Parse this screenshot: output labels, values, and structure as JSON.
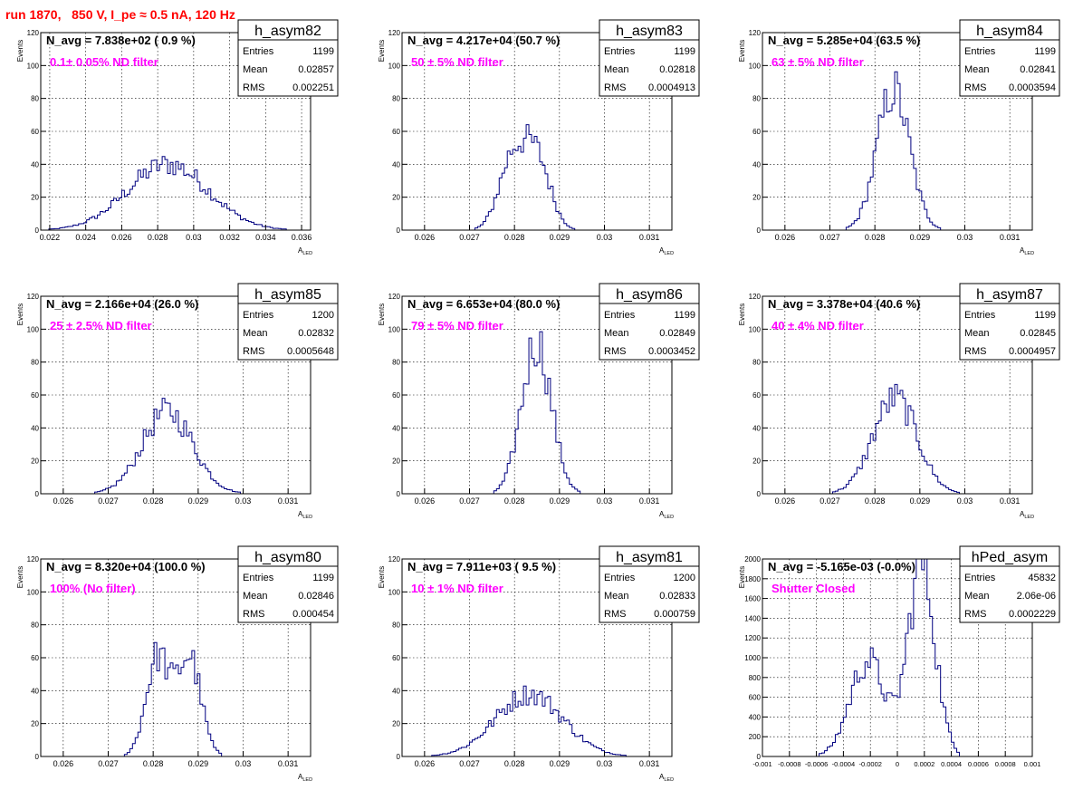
{
  "page_title": "run 1870,   850 V, I_pe ≈ 0.5 nA, 120 Hz",
  "colors": {
    "line": "#000080",
    "annotation": "#ff00ff",
    "title": "#ff0000",
    "grid": "#000000",
    "frame": "#000000"
  },
  "chart_data": [
    {
      "type": "histogram",
      "name": "h_asym82",
      "navg": "N_avg = 7.838e+02 ( 0.9 %)",
      "note": "0.1± 0.05% ND filter",
      "stats": [
        [
          "Entries",
          "1199"
        ],
        [
          "Mean",
          "0.02857"
        ],
        [
          "RMS",
          "0.002251"
        ]
      ],
      "xlabel": "A",
      "xlabel_sub": "LED",
      "ylabel": "Events",
      "xlim": [
        0.0215,
        0.0365
      ],
      "ylim": [
        0,
        120
      ],
      "xticks": [
        0.022,
        0.024,
        0.026,
        0.028,
        0.03,
        0.032,
        0.034,
        0.036
      ],
      "xtick_labels": [
        "0.022",
        "0.024",
        "0.026",
        "0.028",
        "0.03",
        "0.032",
        "0.034",
        "0.036"
      ],
      "yticks": [
        0,
        20,
        40,
        60,
        80,
        100,
        120
      ],
      "ytick_labels": [
        "0",
        "20",
        "40",
        "60",
        "80",
        "100",
        "120"
      ],
      "nbins": 100,
      "gauss": [
        [
          1,
          0.02857,
          0.00225
        ]
      ],
      "peak": 40
    },
    {
      "type": "histogram",
      "name": "h_asym83",
      "navg": "N_avg = 4.217e+04 (50.7 %)",
      "note": "50 ± 5% ND filter",
      "stats": [
        [
          "Entries",
          "1199"
        ],
        [
          "Mean",
          "0.02818"
        ],
        [
          "RMS",
          "0.0004913"
        ]
      ],
      "xlabel": "A",
      "xlabel_sub": "LED",
      "ylabel": "Events",
      "xlim": [
        0.0255,
        0.0315
      ],
      "ylim": [
        0,
        120
      ],
      "xticks": [
        0.026,
        0.027,
        0.028,
        0.029,
        0.03,
        0.031
      ],
      "xtick_labels": [
        "0.026",
        "0.027",
        "0.028",
        "0.029",
        "0.03",
        "0.031"
      ],
      "yticks": [
        0,
        20,
        40,
        60,
        80,
        100,
        120
      ],
      "ytick_labels": [
        "0",
        "20",
        "40",
        "60",
        "80",
        "100",
        "120"
      ],
      "nbins": 100,
      "gauss": [
        [
          1,
          0.02795,
          0.0003
        ],
        [
          1,
          0.0285,
          0.0003
        ]
      ],
      "peak": 55
    },
    {
      "type": "histogram",
      "name": "h_asym84",
      "navg": "N_avg = 5.285e+04 (63.5 %)",
      "note": "63 ± 5% ND filter",
      "stats": [
        [
          "Entries",
          "1199"
        ],
        [
          "Mean",
          "0.02841"
        ],
        [
          "RMS",
          "0.0003594"
        ]
      ],
      "xlabel": "A",
      "xlabel_sub": "LED",
      "ylabel": "Events",
      "xlim": [
        0.0255,
        0.0315
      ],
      "ylim": [
        0,
        120
      ],
      "xticks": [
        0.026,
        0.027,
        0.028,
        0.029,
        0.03,
        0.031
      ],
      "xtick_labels": [
        "0.026",
        "0.027",
        "0.028",
        "0.029",
        "0.03",
        "0.031"
      ],
      "yticks": [
        0,
        20,
        40,
        60,
        80,
        100,
        120
      ],
      "ytick_labels": [
        "0",
        "20",
        "40",
        "60",
        "80",
        "100",
        "120"
      ],
      "nbins": 100,
      "gauss": [
        [
          1,
          0.02841,
          0.00036
        ]
      ],
      "peak": 85
    },
    {
      "type": "histogram",
      "name": "h_asym85",
      "navg": "N_avg = 2.166e+04 (26.0 %)",
      "note": "25 ± 2.5% ND filter",
      "stats": [
        [
          "Entries",
          "1200"
        ],
        [
          "Mean",
          "0.02832"
        ],
        [
          "RMS",
          "0.0005648"
        ]
      ],
      "xlabel": "A",
      "xlabel_sub": "LED",
      "ylabel": "Events",
      "xlim": [
        0.0255,
        0.0315
      ],
      "ylim": [
        0,
        120
      ],
      "xticks": [
        0.026,
        0.027,
        0.028,
        0.029,
        0.03,
        0.031
      ],
      "xtick_labels": [
        "0.026",
        "0.027",
        "0.028",
        "0.029",
        "0.03",
        "0.031"
      ],
      "yticks": [
        0,
        20,
        40,
        60,
        80,
        100,
        120
      ],
      "ytick_labels": [
        "0",
        "20",
        "40",
        "60",
        "80",
        "100",
        "120"
      ],
      "nbins": 100,
      "gauss": [
        [
          1,
          0.02832,
          0.00056
        ]
      ],
      "peak": 50
    },
    {
      "type": "histogram",
      "name": "h_asym86",
      "navg": "N_avg = 6.653e+04 (80.0 %)",
      "note": "79 ± 5% ND filter",
      "stats": [
        [
          "Entries",
          "1199"
        ],
        [
          "Mean",
          "0.02849"
        ],
        [
          "RMS",
          "0.0003452"
        ]
      ],
      "xlabel": "A",
      "xlabel_sub": "LED",
      "ylabel": "Events",
      "xlim": [
        0.0255,
        0.0315
      ],
      "ylim": [
        0,
        120
      ],
      "xticks": [
        0.026,
        0.027,
        0.028,
        0.029,
        0.03,
        0.031
      ],
      "xtick_labels": [
        "0.026",
        "0.027",
        "0.028",
        "0.029",
        "0.03",
        "0.031"
      ],
      "yticks": [
        0,
        20,
        40,
        60,
        80,
        100,
        120
      ],
      "ytick_labels": [
        "0",
        "20",
        "40",
        "60",
        "80",
        "100",
        "120"
      ],
      "nbins": 100,
      "gauss": [
        [
          1,
          0.02849,
          0.00033
        ]
      ],
      "peak": 92
    },
    {
      "type": "histogram",
      "name": "h_asym87",
      "navg": "N_avg = 3.378e+04 (40.6 %)",
      "note": "40 ± 4% ND filter",
      "stats": [
        [
          "Entries",
          "1199"
        ],
        [
          "Mean",
          "0.02845"
        ],
        [
          "RMS",
          "0.0004957"
        ]
      ],
      "xlabel": "A",
      "xlabel_sub": "LED",
      "ylabel": "Events",
      "xlim": [
        0.0255,
        0.0315
      ],
      "ylim": [
        0,
        120
      ],
      "xticks": [
        0.026,
        0.027,
        0.028,
        0.029,
        0.03,
        0.031
      ],
      "xtick_labels": [
        "0.026",
        "0.027",
        "0.028",
        "0.029",
        "0.03",
        "0.031"
      ],
      "yticks": [
        0,
        20,
        40,
        60,
        80,
        100,
        120
      ],
      "ytick_labels": [
        "0",
        "20",
        "40",
        "60",
        "80",
        "100",
        "120"
      ],
      "nbins": 100,
      "gauss": [
        [
          1,
          0.02845,
          0.00049
        ]
      ],
      "peak": 58
    },
    {
      "type": "histogram",
      "name": "h_asym80",
      "navg": "N_avg = 8.320e+04 (100.0 %)",
      "note": "100% (No filter)",
      "stats": [
        [
          "Entries",
          "1199"
        ],
        [
          "Mean",
          "0.02846"
        ],
        [
          "RMS",
          "0.000454"
        ]
      ],
      "xlabel": "A",
      "xlabel_sub": "LED",
      "ylabel": "Events",
      "xlim": [
        0.0255,
        0.0315
      ],
      "ylim": [
        0,
        120
      ],
      "xticks": [
        0.026,
        0.027,
        0.028,
        0.029,
        0.03,
        0.031
      ],
      "xtick_labels": [
        "0.026",
        "0.027",
        "0.028",
        "0.029",
        "0.03",
        "0.031"
      ],
      "yticks": [
        0,
        20,
        40,
        60,
        80,
        100,
        120
      ],
      "ytick_labels": [
        "0",
        "20",
        "40",
        "60",
        "80",
        "100",
        "120"
      ],
      "nbins": 100,
      "gauss": [
        [
          1,
          0.0281,
          0.00026
        ],
        [
          1,
          0.0288,
          0.00026
        ]
      ],
      "peak": 62
    },
    {
      "type": "histogram",
      "name": "h_asym81",
      "navg": "N_avg = 7.911e+03 ( 9.5 %)",
      "note": "10 ± 1% ND filter",
      "stats": [
        [
          "Entries",
          "1200"
        ],
        [
          "Mean",
          "0.02833"
        ],
        [
          "RMS",
          "0.000759"
        ]
      ],
      "xlabel": "A",
      "xlabel_sub": "LED",
      "ylabel": "Events",
      "xlim": [
        0.0255,
        0.0315
      ],
      "ylim": [
        0,
        120
      ],
      "xticks": [
        0.026,
        0.027,
        0.028,
        0.029,
        0.03,
        0.031
      ],
      "xtick_labels": [
        "0.026",
        "0.027",
        "0.028",
        "0.029",
        "0.03",
        "0.031"
      ],
      "yticks": [
        0,
        20,
        40,
        60,
        80,
        100,
        120
      ],
      "ytick_labels": [
        "0",
        "20",
        "40",
        "60",
        "80",
        "100",
        "120"
      ],
      "nbins": 100,
      "gauss": [
        [
          1,
          0.02833,
          0.00075
        ]
      ],
      "peak": 38
    },
    {
      "type": "histogram",
      "name": "hPed_asym",
      "navg": "N_avg = -5.165e-03 (-0.0%)",
      "note": "Shutter Closed",
      "stats": [
        [
          "Entries",
          "45832"
        ],
        [
          "Mean",
          "2.06e-06"
        ],
        [
          "RMS",
          "0.0002229"
        ]
      ],
      "xlabel": "",
      "xlabel_sub": "",
      "ylabel": "Events",
      "xlim": [
        -0.001,
        0.001
      ],
      "ylim": [
        0,
        2000
      ],
      "xticks": [
        -0.001,
        -0.0008,
        -0.0006,
        -0.0004,
        -0.0002,
        0,
        0.0002,
        0.0004,
        0.0006,
        0.0008,
        0.001
      ],
      "xtick_labels": [
        "-0.001",
        "-0.0008",
        "-0.0006",
        "-0.0004",
        "-0.0002",
        "0",
        "0.0002",
        "0.0004",
        "0.0006",
        "0.0008",
        "0.001"
      ],
      "yticks": [
        0,
        200,
        400,
        600,
        800,
        1000,
        1200,
        1400,
        1600,
        1800,
        2000
      ],
      "ytick_labels": [
        "0",
        "200",
        "400",
        "600",
        "800",
        "1000",
        "1200",
        "1400",
        "1600",
        "1800",
        "2000"
      ],
      "nbins": 100,
      "gauss": [
        [
          0.5,
          -0.00022,
          0.00013
        ],
        [
          1,
          0.00018,
          0.0001
        ]
      ],
      "peak": 1950
    }
  ]
}
